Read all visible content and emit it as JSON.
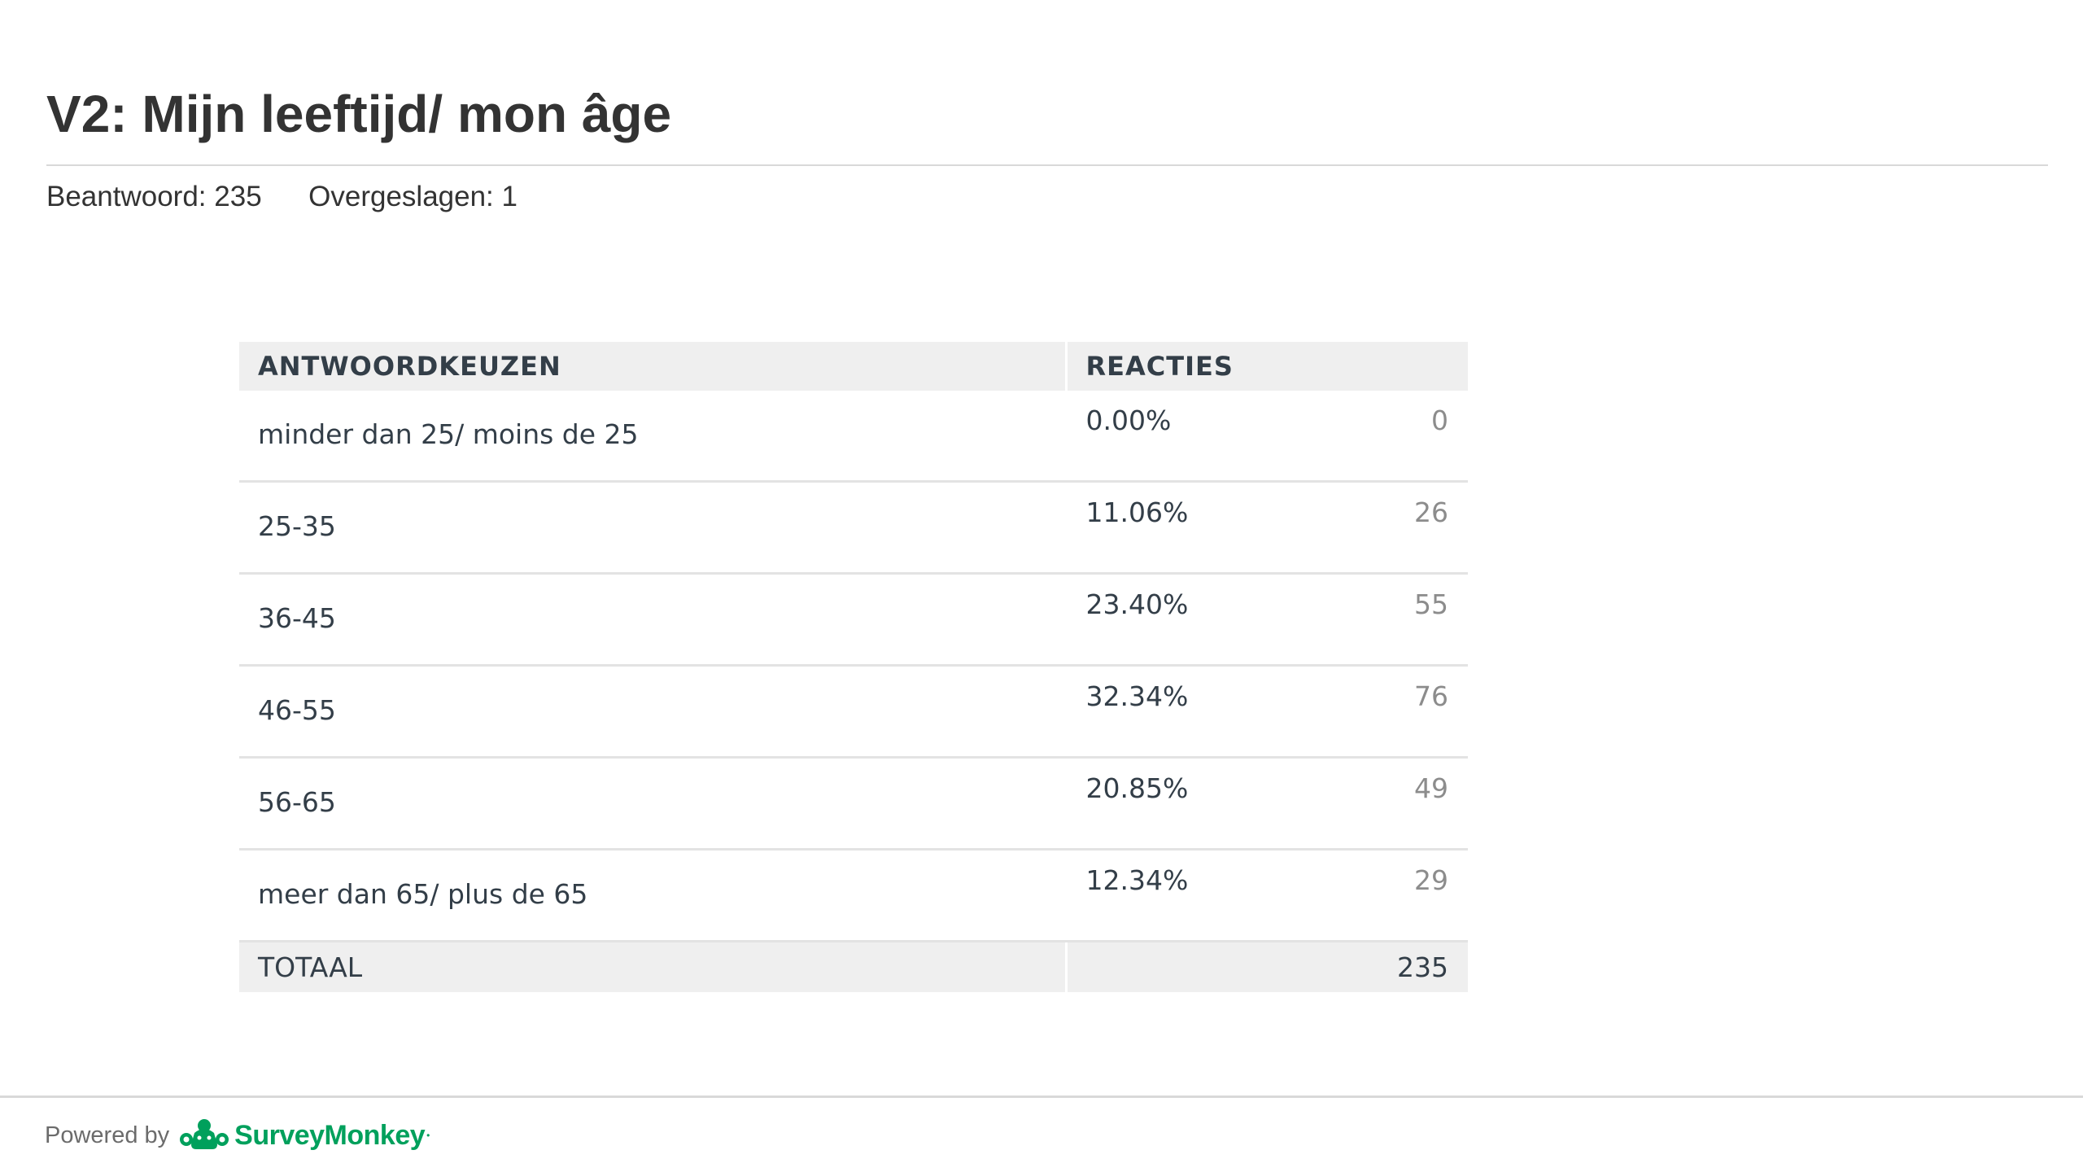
{
  "page": {
    "title": "V2: Mijn leeftijd/ mon âge"
  },
  "stats": {
    "answered_label": "Beantwoord:",
    "answered_value": "235",
    "skipped_label": "Overgeslagen:",
    "skipped_value": "1"
  },
  "table": {
    "headers": {
      "choices": "ANTWOORDKEUZEN",
      "responses": "REACTIES"
    },
    "rows": [
      {
        "choice": "minder dan 25/ moins de 25",
        "percent": "0.00%",
        "count": "0"
      },
      {
        "choice": "25-35",
        "percent": "11.06%",
        "count": "26"
      },
      {
        "choice": "36-45",
        "percent": "23.40%",
        "count": "55"
      },
      {
        "choice": "46-55",
        "percent": "32.34%",
        "count": "76"
      },
      {
        "choice": "56-65",
        "percent": "20.85%",
        "count": "49"
      },
      {
        "choice": "meer dan 65/ plus de 65",
        "percent": "12.34%",
        "count": "29"
      }
    ],
    "total": {
      "label": "TOTAAL",
      "value": "235"
    }
  },
  "footer": {
    "powered_by": "Powered by",
    "brand_name": "SurveyMonkey",
    "brand_icon": "surveymonkey-logo-icon",
    "brand_color": "#00a05c"
  }
}
